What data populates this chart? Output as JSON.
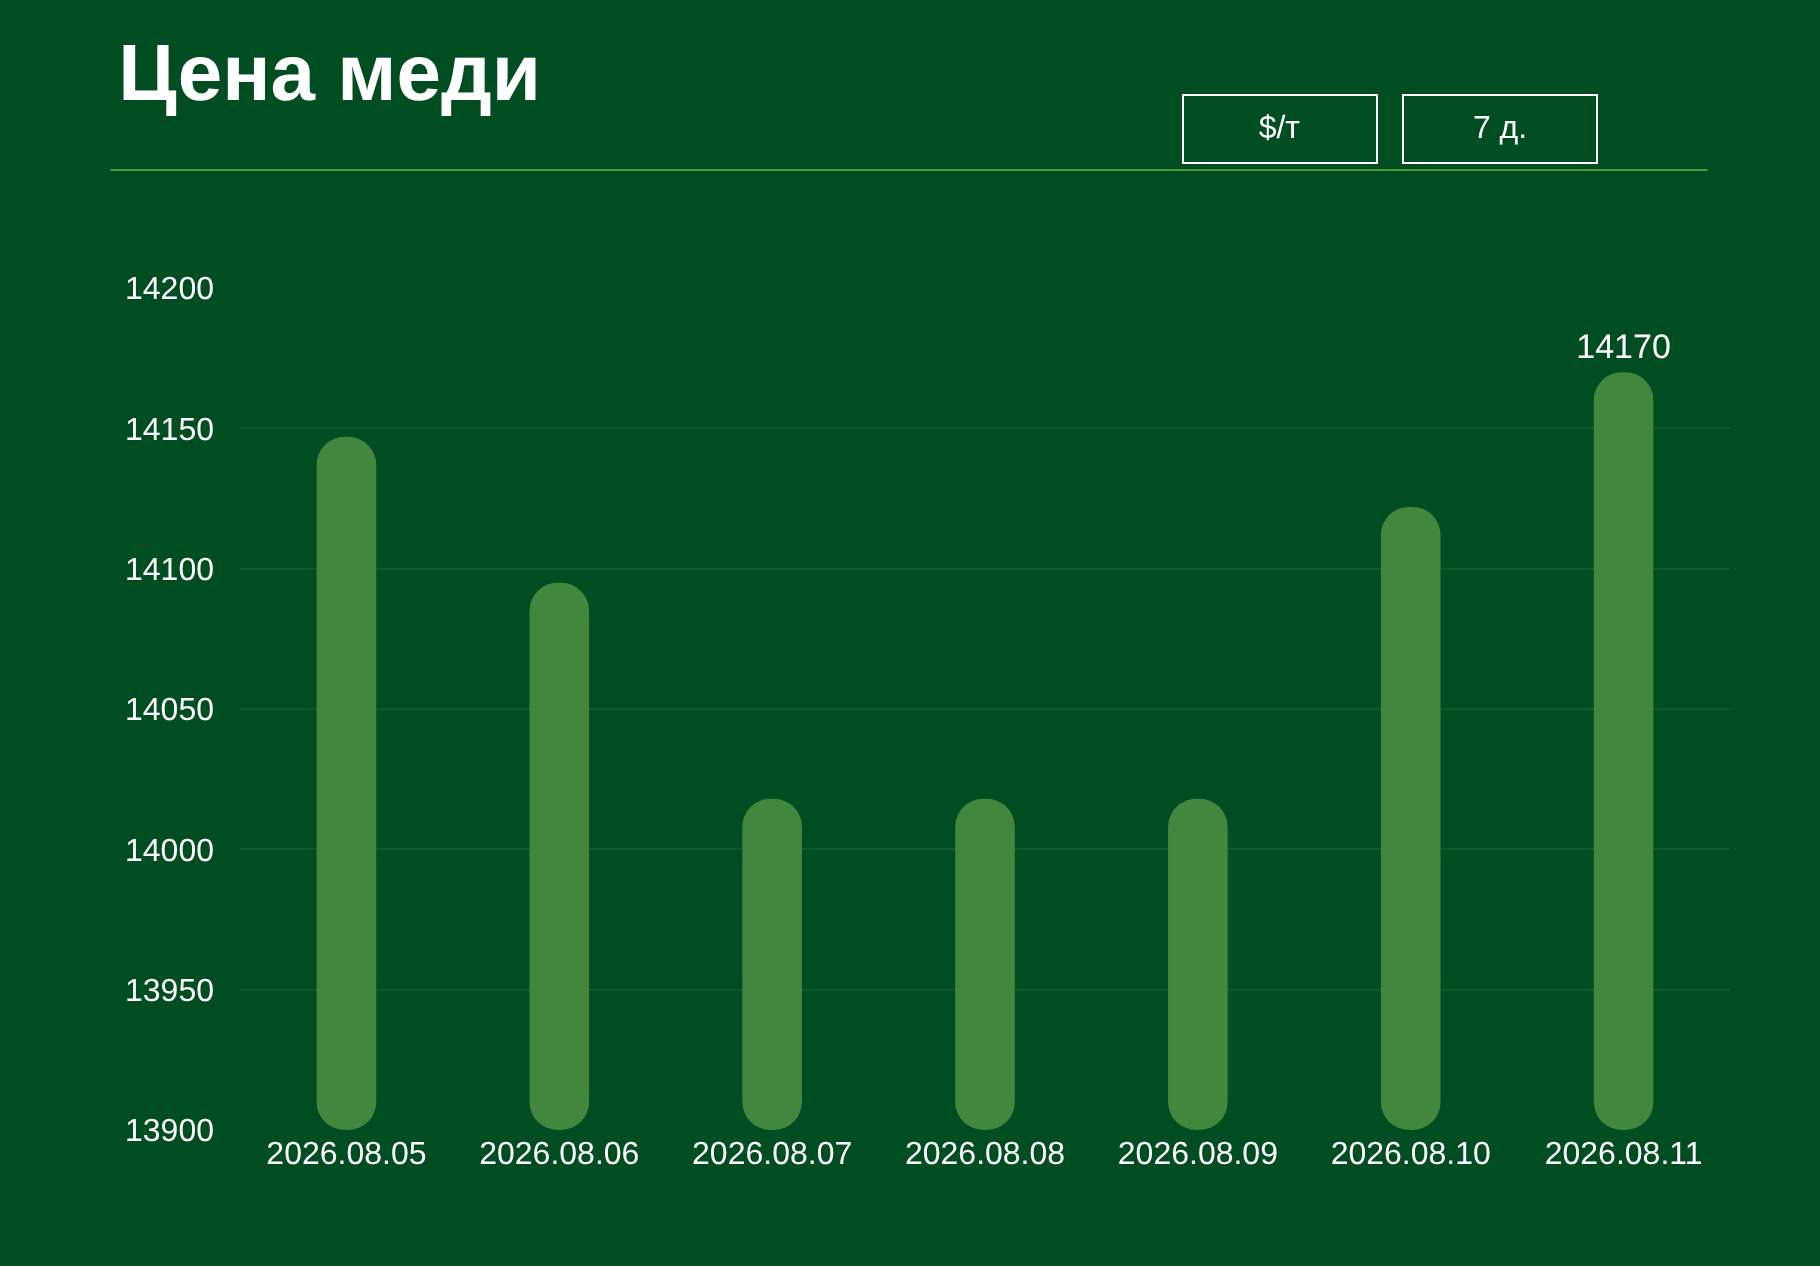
{
  "chart_data": {
    "type": "bar",
    "title": "Цена меди",
    "annotations": [
      "$/т",
      "7 д."
    ],
    "categories": [
      "2026.08.05",
      "2026.08.06",
      "2026.08.07",
      "2026.08.08",
      "2026.08.09",
      "2026.08.10",
      "2026.08.11"
    ],
    "values": [
      14147,
      14095,
      14018,
      14018,
      14018,
      14122,
      14170
    ],
    "value_labels": [
      null,
      null,
      null,
      null,
      null,
      null,
      "14170"
    ],
    "color": "#43873f",
    "ylim": [
      13900,
      14200
    ],
    "yticks": [
      13900,
      13950,
      14000,
      14050,
      14100,
      14150,
      14200
    ],
    "grid": "y",
    "legend": false
  }
}
